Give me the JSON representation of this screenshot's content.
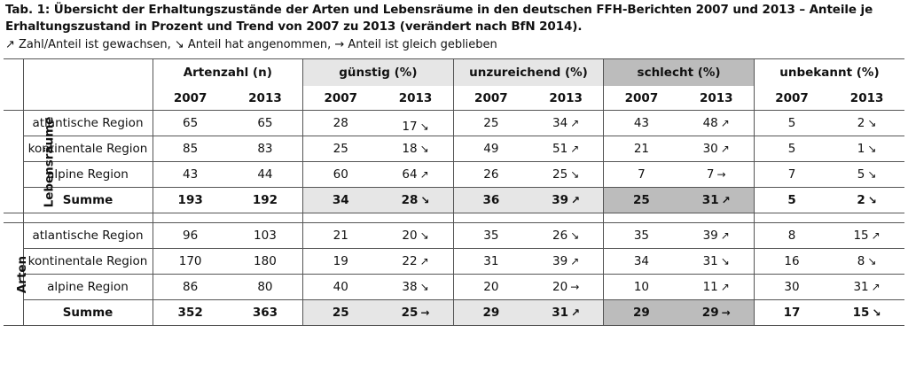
{
  "caption": {
    "title": "Tab. 1: Übersicht der Erhaltungszustände der Arten und Lebensräume in den deutschen FFH-Berichten 2007 und 2013 – Anteile je Erhaltungszustand in Prozent und Trend von 2007 zu 2013 (verändert nach BfN 2014).",
    "legend": "↗ Zahl/Anteil ist gewachsen, ↘ Anteil hat angenommen, → Anteil ist gleich geblieben"
  },
  "header": {
    "count": "Artenzahl (n)",
    "favourable": "günstig (%)",
    "inadequate": "unzureichend (%)",
    "bad": "schlecht (%)",
    "unknown": "unbekannt (%)",
    "y2007": "2007",
    "y2013": "2013"
  },
  "groups": {
    "lebensraeume": "Lebensräume",
    "arten": "Arten"
  },
  "rows": {
    "lr_atl": {
      "name": "atlantische Region",
      "n07": "65",
      "n13": "65",
      "g07": "28",
      "g13": "17",
      "g13t": "↘",
      "u07": "25",
      "u13": "34",
      "u13t": "↗",
      "s07": "43",
      "s13": "48",
      "s13t": "↗",
      "k07": "5",
      "k13": "2",
      "k13t": "↘"
    },
    "lr_kon": {
      "name": "kontinentale Region",
      "n07": "85",
      "n13": "83",
      "g07": "25",
      "g13": "18",
      "g13t": "↘",
      "u07": "49",
      "u13": "51",
      "u13t": "↗",
      "s07": "21",
      "s13": "30",
      "s13t": "↗",
      "k07": "5",
      "k13": "1",
      "k13t": "↘"
    },
    "lr_alp": {
      "name": "alpine Region",
      "n07": "43",
      "n13": "44",
      "g07": "60",
      "g13": "64",
      "g13t": "↗",
      "u07": "26",
      "u13": "25",
      "u13t": "↘",
      "s07": "7",
      "s13": "7",
      "s13t": "→",
      "k07": "7",
      "k13": "5",
      "k13t": "↘"
    },
    "lr_sum": {
      "name": "Summe",
      "n07": "193",
      "n13": "192",
      "g07": "34",
      "g13": "28",
      "g13t": "↘",
      "u07": "36",
      "u13": "39",
      "u13t": "↗",
      "s07": "25",
      "s13": "31",
      "s13t": "↗",
      "k07": "5",
      "k13": "2",
      "k13t": "↘"
    },
    "ar_atl": {
      "name": "atlantische Region",
      "n07": "96",
      "n13": "103",
      "g07": "21",
      "g13": "20",
      "g13t": "↘",
      "u07": "35",
      "u13": "26",
      "u13t": "↘",
      "s07": "35",
      "s13": "39",
      "s13t": "↗",
      "k07": "8",
      "k13": "15",
      "k13t": "↗"
    },
    "ar_kon": {
      "name": "kontinentale Region",
      "n07": "170",
      "n13": "180",
      "g07": "19",
      "g13": "22",
      "g13t": "↗",
      "u07": "31",
      "u13": "39",
      "u13t": "↗",
      "s07": "34",
      "s13": "31",
      "s13t": "↘",
      "k07": "16",
      "k13": "8",
      "k13t": "↘"
    },
    "ar_alp": {
      "name": "alpine Region",
      "n07": "86",
      "n13": "80",
      "g07": "40",
      "g13": "38",
      "g13t": "↘",
      "u07": "20",
      "u13": "20",
      "u13t": "→",
      "s07": "10",
      "s13": "11",
      "s13t": "↗",
      "k07": "30",
      "k13": "31",
      "k13t": "↗"
    },
    "ar_sum": {
      "name": "Summe",
      "n07": "352",
      "n13": "363",
      "g07": "25",
      "g13": "25",
      "g13t": "→",
      "u07": "29",
      "u13": "31",
      "u13t": "↗",
      "s07": "29",
      "s13": "29",
      "s13t": "→",
      "k07": "17",
      "k13": "15",
      "k13t": "↘"
    }
  }
}
